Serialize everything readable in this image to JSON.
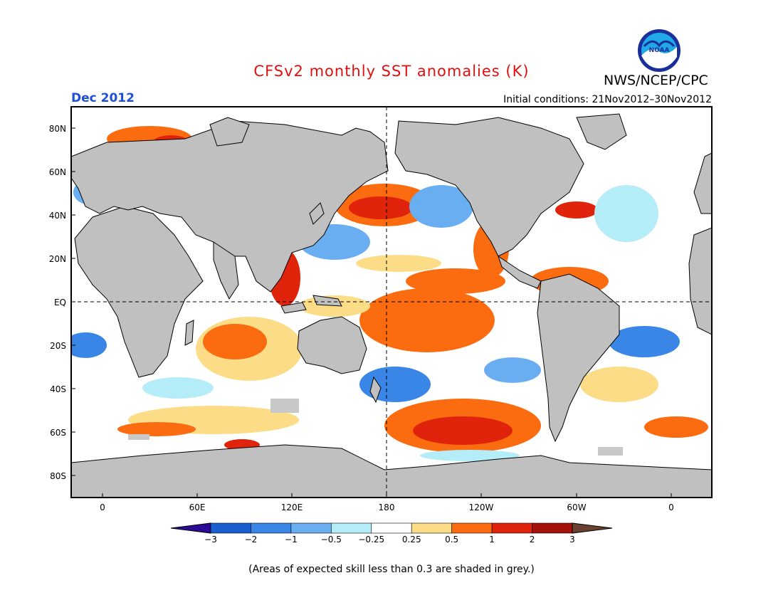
{
  "header": {
    "title": "CFSv2 monthly SST anomalies (K)",
    "agency": "NWS/NCEP/CPC",
    "logo_text": "NOAA",
    "month": "Dec 2012",
    "initial_conditions": "Initial conditions: 21Nov2012–30Nov2012"
  },
  "map": {
    "lat_labels": [
      "80N",
      "60N",
      "40N",
      "20N",
      "EQ",
      "20S",
      "40S",
      "60S",
      "80S"
    ],
    "lon_labels": [
      "0",
      "60E",
      "120E",
      "180",
      "120W",
      "60W",
      "0"
    ],
    "dashed_lines": [
      "EQ",
      "180"
    ],
    "colors": {
      "land": "#c0c0c0",
      "ocean": "#ffffff",
      "low_skill": "#c8c8c8"
    }
  },
  "colorbar": {
    "tick_labels": [
      "-3",
      "-2",
      "-1",
      "-0.5",
      "-0.25",
      "0.25",
      "0.5",
      "1",
      "2",
      "3"
    ],
    "colors": [
      "#2a0a96",
      "#1a5fd0",
      "#3a86e6",
      "#69aef0",
      "#b4ecf7",
      "#ffffff",
      "#fcdc86",
      "#fb6b10",
      "#e0240c",
      "#a4100a",
      "#6b4030"
    ]
  },
  "footnote": "(Areas of expected skill less than 0.3 are shaded in grey.)"
}
